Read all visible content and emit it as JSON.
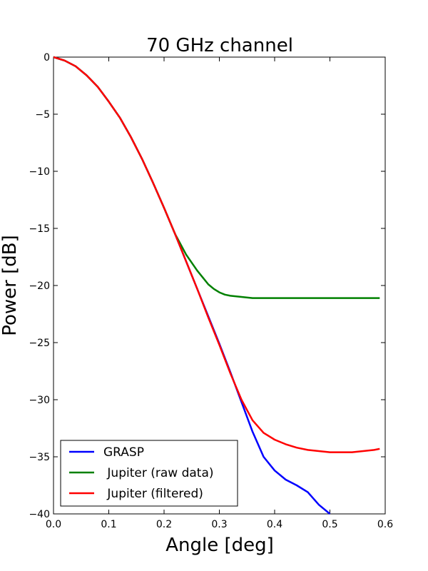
{
  "chart_data": {
    "type": "line",
    "title": "70 GHz channel",
    "xlabel": "Angle [deg]",
    "ylabel": "Power [dB]",
    "xlim": [
      0.0,
      0.6
    ],
    "ylim": [
      -40,
      0
    ],
    "xticks": [
      "0.0",
      "0.1",
      "0.2",
      "0.3",
      "0.4",
      "0.5",
      "0.6"
    ],
    "yticks": [
      "0",
      "−5",
      "−10",
      "−15",
      "−20",
      "−25",
      "−30",
      "−35",
      "−40"
    ],
    "grid": false,
    "legend_position": "lower-left",
    "series": [
      {
        "name": "GRASP",
        "color": "#0000ff",
        "x": [
          0,
          0.02,
          0.04,
          0.06,
          0.08,
          0.1,
          0.12,
          0.14,
          0.16,
          0.18,
          0.2,
          0.22,
          0.24,
          0.26,
          0.28,
          0.3,
          0.32,
          0.34,
          0.36,
          0.38,
          0.4,
          0.42,
          0.44,
          0.46,
          0.48,
          0.5
        ],
        "y": [
          0,
          -0.3,
          -0.8,
          -1.6,
          -2.6,
          -3.9,
          -5.3,
          -7.0,
          -8.9,
          -11.0,
          -13.2,
          -15.5,
          -17.9,
          -20.3,
          -22.7,
          -25.1,
          -27.6,
          -30.2,
          -32.8,
          -35.0,
          -36.2,
          -37.0,
          -37.5,
          -38.1,
          -39.2,
          -40.0
        ]
      },
      {
        "name": " Jupiter (raw data)",
        "color": "#008000",
        "x": [
          0,
          0.02,
          0.04,
          0.06,
          0.08,
          0.1,
          0.12,
          0.14,
          0.16,
          0.18,
          0.2,
          0.22,
          0.24,
          0.26,
          0.27,
          0.28,
          0.29,
          0.3,
          0.31,
          0.32,
          0.34,
          0.36,
          0.38,
          0.4,
          0.42,
          0.44,
          0.46,
          0.48,
          0.5,
          0.52,
          0.54,
          0.56,
          0.58,
          0.59
        ],
        "y": [
          0,
          -0.3,
          -0.8,
          -1.6,
          -2.6,
          -3.9,
          -5.3,
          -7.0,
          -8.9,
          -11.0,
          -13.2,
          -15.5,
          -17.3,
          -18.7,
          -19.3,
          -19.9,
          -20.3,
          -20.6,
          -20.8,
          -20.9,
          -21.0,
          -21.1,
          -21.1,
          -21.1,
          -21.1,
          -21.1,
          -21.1,
          -21.1,
          -21.1,
          -21.1,
          -21.1,
          -21.1,
          -21.1,
          -21.1
        ]
      },
      {
        "name": " Jupiter (filtered)",
        "color": "#ff0000",
        "x": [
          0,
          0.02,
          0.04,
          0.06,
          0.08,
          0.1,
          0.12,
          0.14,
          0.16,
          0.18,
          0.2,
          0.22,
          0.24,
          0.26,
          0.28,
          0.3,
          0.32,
          0.34,
          0.36,
          0.38,
          0.4,
          0.42,
          0.44,
          0.46,
          0.48,
          0.5,
          0.52,
          0.54,
          0.56,
          0.58,
          0.59
        ],
        "y": [
          0,
          -0.3,
          -0.8,
          -1.6,
          -2.6,
          -3.9,
          -5.3,
          -7.0,
          -8.9,
          -11.0,
          -13.2,
          -15.5,
          -17.9,
          -20.3,
          -22.8,
          -25.2,
          -27.7,
          -30.0,
          -31.8,
          -32.9,
          -33.5,
          -33.9,
          -34.2,
          -34.4,
          -34.5,
          -34.6,
          -34.6,
          -34.6,
          -34.5,
          -34.4,
          -34.3
        ]
      }
    ]
  }
}
